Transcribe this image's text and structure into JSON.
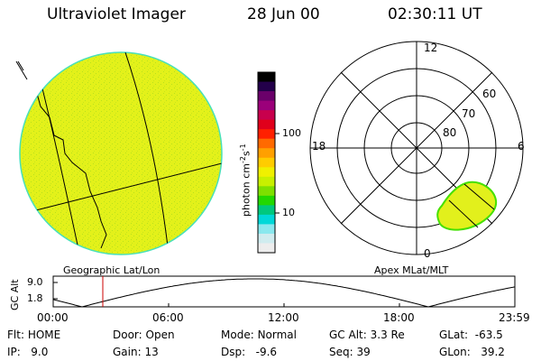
{
  "header": {
    "instrument": "Ultraviolet Imager",
    "date": "28 Jun 00",
    "time": "02:30:11 UT"
  },
  "colors": {
    "image_fill": "#e3f11a",
    "image_speckle": "#b8e11c",
    "image_rim": "#48e0b8",
    "oval_fill": "#e2f01c",
    "oval_edge": "#45e000"
  },
  "left_panel": {
    "caption": "Geographic Lat/Lon"
  },
  "colorbar": {
    "unit_label": "photon cm",
    "exp1": "-2",
    "s_label": "s",
    "exp2": "-1",
    "ticks": [
      "100",
      "10"
    ],
    "colors": [
      "#000000",
      "#23004a",
      "#6a006a",
      "#9b007a",
      "#c8004d",
      "#e0001b",
      "#ff2000",
      "#ff6a00",
      "#ffa000",
      "#ffcc00",
      "#f0f000",
      "#c8f000",
      "#7ee000",
      "#22d800",
      "#00c87d",
      "#00d8d8",
      "#8ae8ee",
      "#d0ecef",
      "#ededed"
    ]
  },
  "polar_plot": {
    "caption": "Apex MLat/MLT",
    "mlt_labels": [
      "12",
      "18",
      "6",
      "0"
    ],
    "lat_labels": [
      "60",
      "70",
      "80"
    ]
  },
  "altitude_plot": {
    "ylabel": "GC Alt",
    "ticks": [
      "9.0",
      "1.8"
    ],
    "xticks": [
      "00:00",
      "06:00",
      "12:00",
      "18:00",
      "23:59"
    ],
    "current_time_color": "#cc0000"
  },
  "status": {
    "flt_label": "Flt:",
    "flt": "HOME",
    "ip_label": "IP:",
    "ip": "9.0",
    "door_label": "Door:",
    "door": "Open",
    "gain_label": "Gain:",
    "gain": "13",
    "mode_label": "Mode:",
    "mode": "Normal",
    "dsp_label": "Dsp:",
    "dsp": "-9.6",
    "gcalt_label": "GC Alt:",
    "gcalt": "3.3 Re",
    "seq_label": "Seq:",
    "seq": "39",
    "glat_label": "GLat:",
    "glat": "-63.5",
    "glon_label": "GLon:",
    "glon": "39.2"
  }
}
